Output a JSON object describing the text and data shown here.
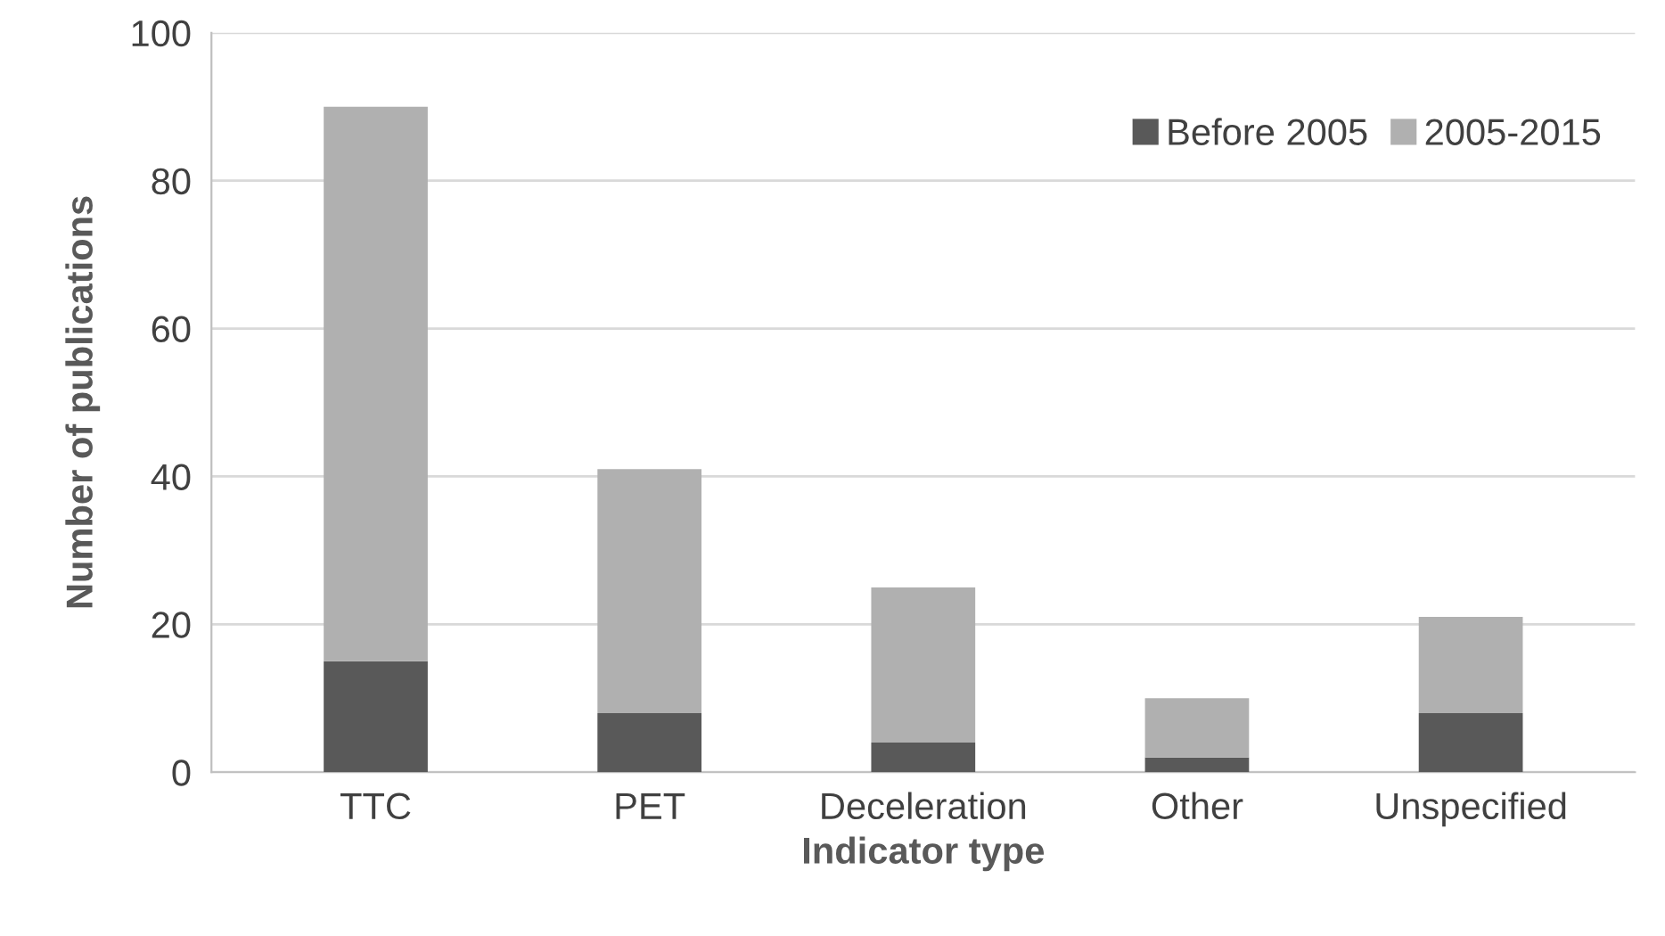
{
  "chart_data": {
    "type": "bar",
    "stacked": true,
    "xlabel": "Indicator type",
    "ylabel": "Number of publications",
    "categories": [
      "TTC",
      "PET",
      "Deceleration",
      "Other",
      "Unspecified"
    ],
    "series": [
      {
        "name": "Before 2005",
        "color": "#595959",
        "values": [
          15,
          8,
          4,
          2,
          8
        ]
      },
      {
        "name": "2005-2015",
        "color": "#b0b0b0",
        "values": [
          75,
          33,
          21,
          8,
          13
        ]
      }
    ],
    "ylim": [
      0,
      100
    ],
    "yticks": [
      0,
      20,
      40,
      60,
      80,
      100
    ],
    "grid": "y",
    "legend": "top right"
  }
}
